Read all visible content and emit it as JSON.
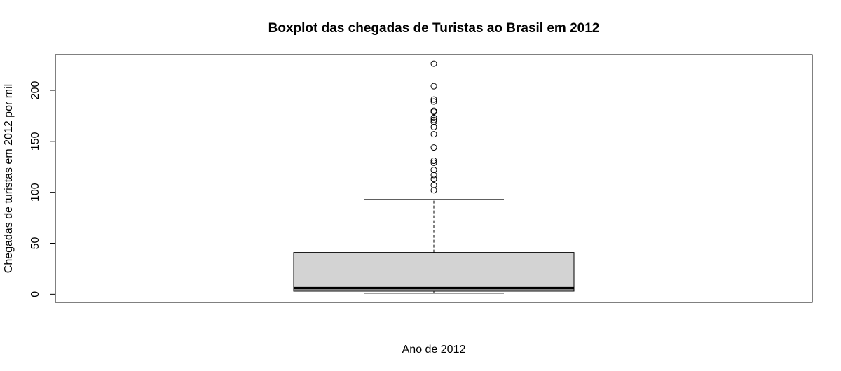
{
  "chart_data": {
    "type": "boxplot",
    "title": "Boxplot das chegadas de Turistas ao Brasil em 2012",
    "xlabel": "Ano de 2012",
    "ylabel": "Chegadas de turistas em 2012 por mil",
    "ylim": [
      -8,
      235
    ],
    "yticks": [
      0,
      50,
      100,
      150,
      200
    ],
    "ytick_labels": [
      "0",
      "50",
      "100",
      "150",
      "200"
    ],
    "box": {
      "lower_whisker": 1,
      "q1": 3,
      "median": 6,
      "q3": 41,
      "upper_whisker": 93,
      "fill": "#d3d3d3"
    },
    "outliers": [
      102,
      107,
      113,
      117,
      122,
      129,
      131,
      144,
      157,
      164,
      169,
      171,
      173,
      179,
      180,
      189,
      191,
      204,
      226
    ],
    "grid": false,
    "legend": "none"
  }
}
